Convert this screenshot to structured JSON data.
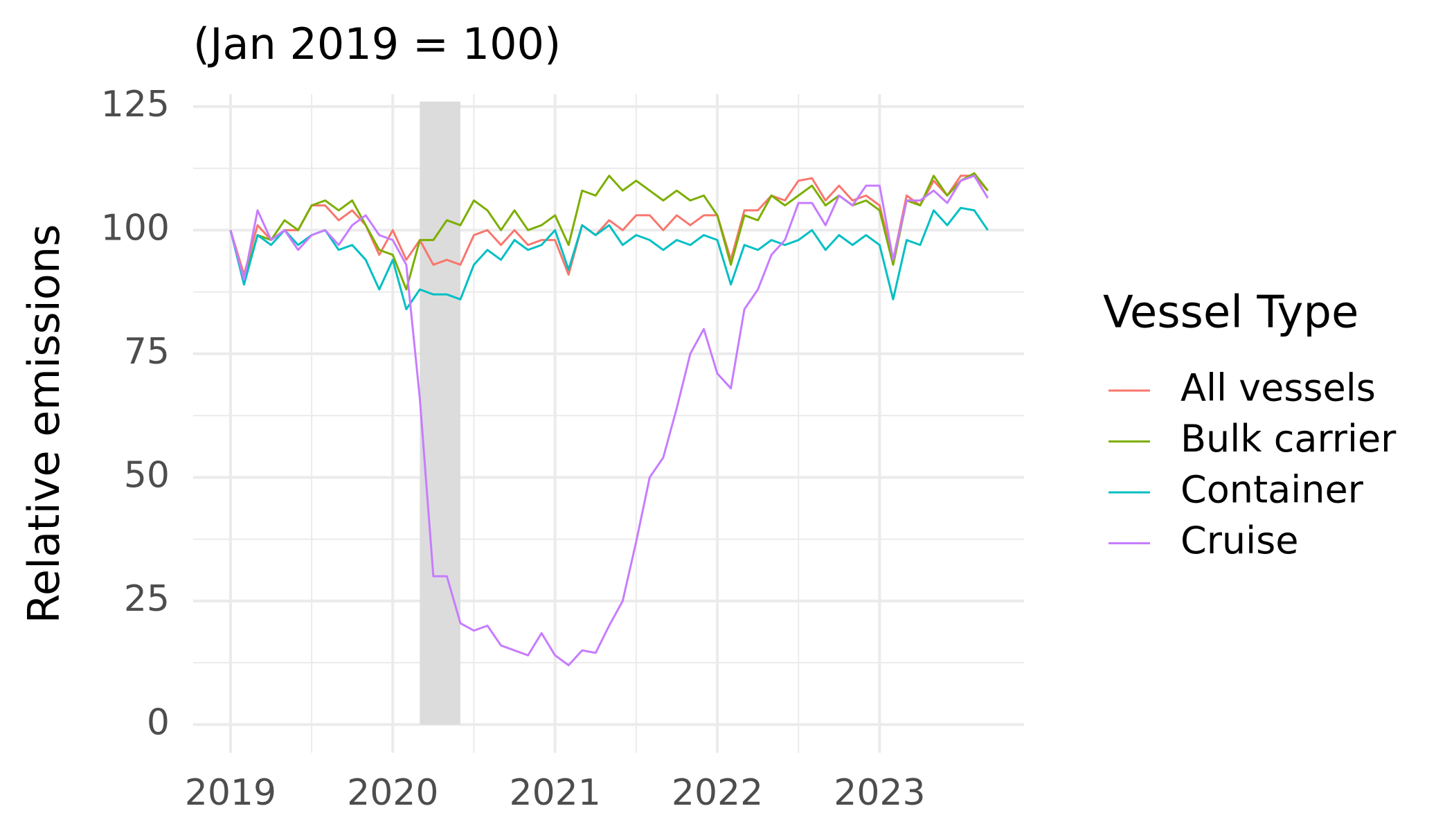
{
  "chart_data": {
    "type": "line",
    "title": "(Jan 2019 = 100)",
    "y_label": "Relative emissions",
    "legend_title": "Vessel Type",
    "legend": "right",
    "grid": true,
    "x": [
      "2019-01",
      "2019-02",
      "2019-03",
      "2019-04",
      "2019-05",
      "2019-06",
      "2019-07",
      "2019-08",
      "2019-09",
      "2019-10",
      "2019-11",
      "2019-12",
      "2020-01",
      "2020-02",
      "2020-03",
      "2020-04",
      "2020-05",
      "2020-06",
      "2020-07",
      "2020-08",
      "2020-09",
      "2020-10",
      "2020-11",
      "2020-12",
      "2021-01",
      "2021-02",
      "2021-03",
      "2021-04",
      "2021-05",
      "2021-06",
      "2021-07",
      "2021-08",
      "2021-09",
      "2021-10",
      "2021-11",
      "2021-12",
      "2022-01",
      "2022-02",
      "2022-03",
      "2022-04",
      "2022-05",
      "2022-06",
      "2022-07",
      "2022-08",
      "2022-09",
      "2022-10",
      "2022-11",
      "2022-12",
      "2023-01",
      "2023-02",
      "2023-03",
      "2023-04",
      "2023-05",
      "2023-06",
      "2023-07",
      "2023-08",
      "2023-09"
    ],
    "xlim": [
      2018.77,
      2023.89
    ],
    "xticks": [
      2019,
      2020,
      2021,
      2022,
      2023
    ],
    "ylim": [
      -5.7,
      127.5
    ],
    "yticks": [
      0,
      25,
      50,
      75,
      100,
      125
    ],
    "shade": {
      "x": [
        "2020-03",
        "2020-06"
      ],
      "y": [
        0,
        126
      ],
      "color": "#dcdcdc"
    },
    "series": [
      {
        "name": "All vessels",
        "color": "#F8766D",
        "values": [
          100,
          91,
          101,
          98,
          100,
          100,
          105,
          105,
          102,
          104,
          101,
          95,
          100,
          94,
          98,
          93,
          94,
          93,
          99,
          100,
          97,
          100,
          97,
          98,
          98,
          91,
          101,
          99,
          102,
          100,
          103,
          103,
          100,
          103,
          101,
          103,
          103,
          94,
          104,
          104,
          107,
          106,
          110,
          110.5,
          106,
          109,
          106,
          107,
          105,
          94,
          107,
          105,
          110,
          107,
          111,
          111,
          108
        ]
      },
      {
        "name": "Bulk carrier",
        "color": "#7CAE00",
        "values": [
          100,
          90,
          99,
          98,
          102,
          100,
          105,
          106,
          104,
          106,
          101,
          96,
          95,
          88,
          98,
          98,
          102,
          101,
          106,
          104,
          100,
          104,
          100,
          101,
          103,
          97,
          108,
          107,
          111,
          108,
          110,
          108,
          106,
          108,
          106,
          107,
          103,
          93,
          103,
          102,
          107,
          105,
          107,
          109,
          105,
          107,
          105,
          106,
          104,
          93,
          106,
          105,
          111,
          107,
          110,
          111.5,
          108
        ]
      },
      {
        "name": "Container",
        "color": "#00BFC4",
        "values": [
          100,
          89,
          99,
          97,
          100,
          97,
          99,
          100,
          96,
          97,
          94,
          88,
          94,
          84,
          88,
          87,
          87,
          86,
          93,
          96,
          94,
          98,
          96,
          97,
          100,
          92,
          101,
          99,
          101,
          97,
          99,
          98,
          96,
          98,
          97,
          99,
          98,
          89,
          97,
          96,
          98,
          97,
          98,
          100,
          96,
          99,
          97,
          99,
          97,
          86,
          98,
          97,
          104,
          101,
          104.5,
          104,
          100
        ]
      },
      {
        "name": "Cruise",
        "color": "#C77CFF",
        "values": [
          100,
          90,
          104,
          98,
          100,
          96,
          99,
          100,
          97,
          101,
          103,
          99,
          98,
          93,
          66,
          30,
          30,
          20.5,
          19,
          20,
          16,
          15,
          14,
          18.5,
          14,
          12,
          15,
          14.5,
          20,
          25,
          37,
          50,
          54,
          64,
          75,
          80,
          71,
          68,
          84,
          88,
          95,
          98,
          105.5,
          105.5,
          101,
          107,
          105,
          109,
          109,
          94,
          106,
          106,
          108,
          105.5,
          110,
          111,
          106.5
        ]
      }
    ]
  }
}
